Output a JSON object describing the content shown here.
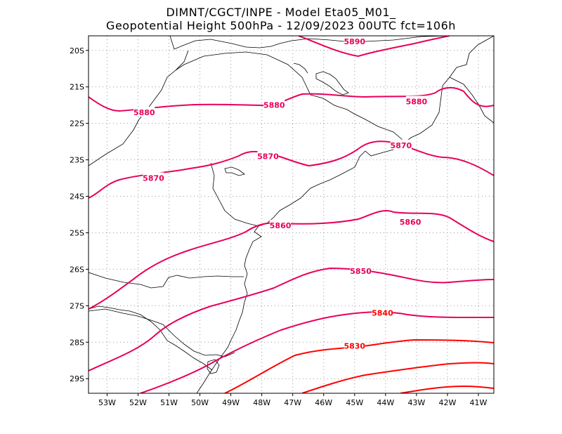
{
  "header": {
    "line1": "DIMNT/CGCT/INPE -  Model Eta05_M01_",
    "line2": "Geopotential Height 500hPa -  12/09/2023 00UTC fct=106h"
  },
  "map": {
    "projection": "lat-lon",
    "lon_range": [
      -53.6,
      -40.5
    ],
    "lat_range": [
      -29.4,
      -19.6
    ],
    "x_ticks": [
      "53W",
      "52W",
      "51W",
      "50W",
      "49W",
      "48W",
      "47W",
      "46W",
      "45W",
      "44W",
      "43W",
      "42W",
      "41W"
    ],
    "y_ticks": [
      "20S",
      "21S",
      "22S",
      "23S",
      "24S",
      "25S",
      "26S",
      "27S",
      "28S",
      "29S"
    ],
    "grid": "dotted",
    "contour_color": "#e8005a",
    "contour_color_low": "#ff0000",
    "contour_labels": [
      {
        "text": "5890",
        "lon": -45.0,
        "lat": -19.75
      },
      {
        "text": "5880",
        "lon": -51.8,
        "lat": -21.7
      },
      {
        "text": "5880",
        "lon": -47.6,
        "lat": -21.5
      },
      {
        "text": "5880",
        "lon": -43.0,
        "lat": -21.4
      },
      {
        "text": "5870",
        "lon": -51.5,
        "lat": -23.5
      },
      {
        "text": "5870",
        "lon": -47.8,
        "lat": -22.9
      },
      {
        "text": "5870",
        "lon": -43.5,
        "lat": -22.6
      },
      {
        "text": "5860",
        "lon": -47.4,
        "lat": -24.8
      },
      {
        "text": "5860",
        "lon": -43.2,
        "lat": -24.7
      },
      {
        "text": "5850",
        "lon": -44.8,
        "lat": -26.05
      },
      {
        "text": "5840",
        "lon": -44.1,
        "lat": -27.2
      },
      {
        "text": "5830",
        "lon": -45.0,
        "lat": -28.1
      }
    ]
  }
}
